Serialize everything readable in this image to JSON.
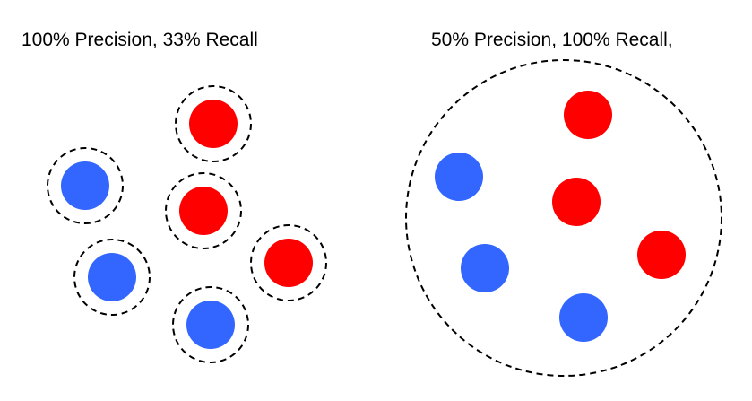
{
  "panels": [
    {
      "caption": "100% Precision, 33% Recall",
      "selection": "each-circled",
      "items": [
        {
          "class": "positive"
        },
        {
          "class": "negative"
        },
        {
          "class": "positive"
        },
        {
          "class": "negative"
        },
        {
          "class": "positive"
        },
        {
          "class": "negative"
        }
      ]
    },
    {
      "caption": "50% Precision, 100% Recall,",
      "selection": "all-in-one-circle",
      "items": [
        {
          "class": "positive"
        },
        {
          "class": "negative"
        },
        {
          "class": "positive"
        },
        {
          "class": "negative"
        },
        {
          "class": "positive"
        },
        {
          "class": "negative"
        }
      ]
    }
  ],
  "colors": {
    "positive": "#ff0000",
    "negative": "#3366ff",
    "outline": "#000000"
  }
}
